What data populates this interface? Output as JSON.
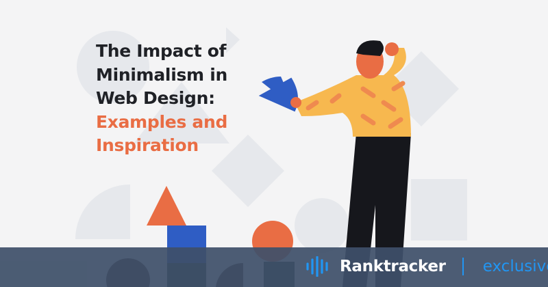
{
  "title": {
    "lines": [
      "The Impact of",
      "Minimalism in",
      "Web Design:"
    ],
    "accent_lines": [
      "Examples and",
      "Inspiration"
    ]
  },
  "footer": {
    "brand": "Ranktracker",
    "tag": "exclusive",
    "logo_icon": "sound-wave-icon"
  },
  "colors": {
    "background": "#f4f4f5",
    "title": "#1f2126",
    "accent": "#e96d44",
    "brand_blue": "#2196f3",
    "footer": "#3e5069"
  }
}
